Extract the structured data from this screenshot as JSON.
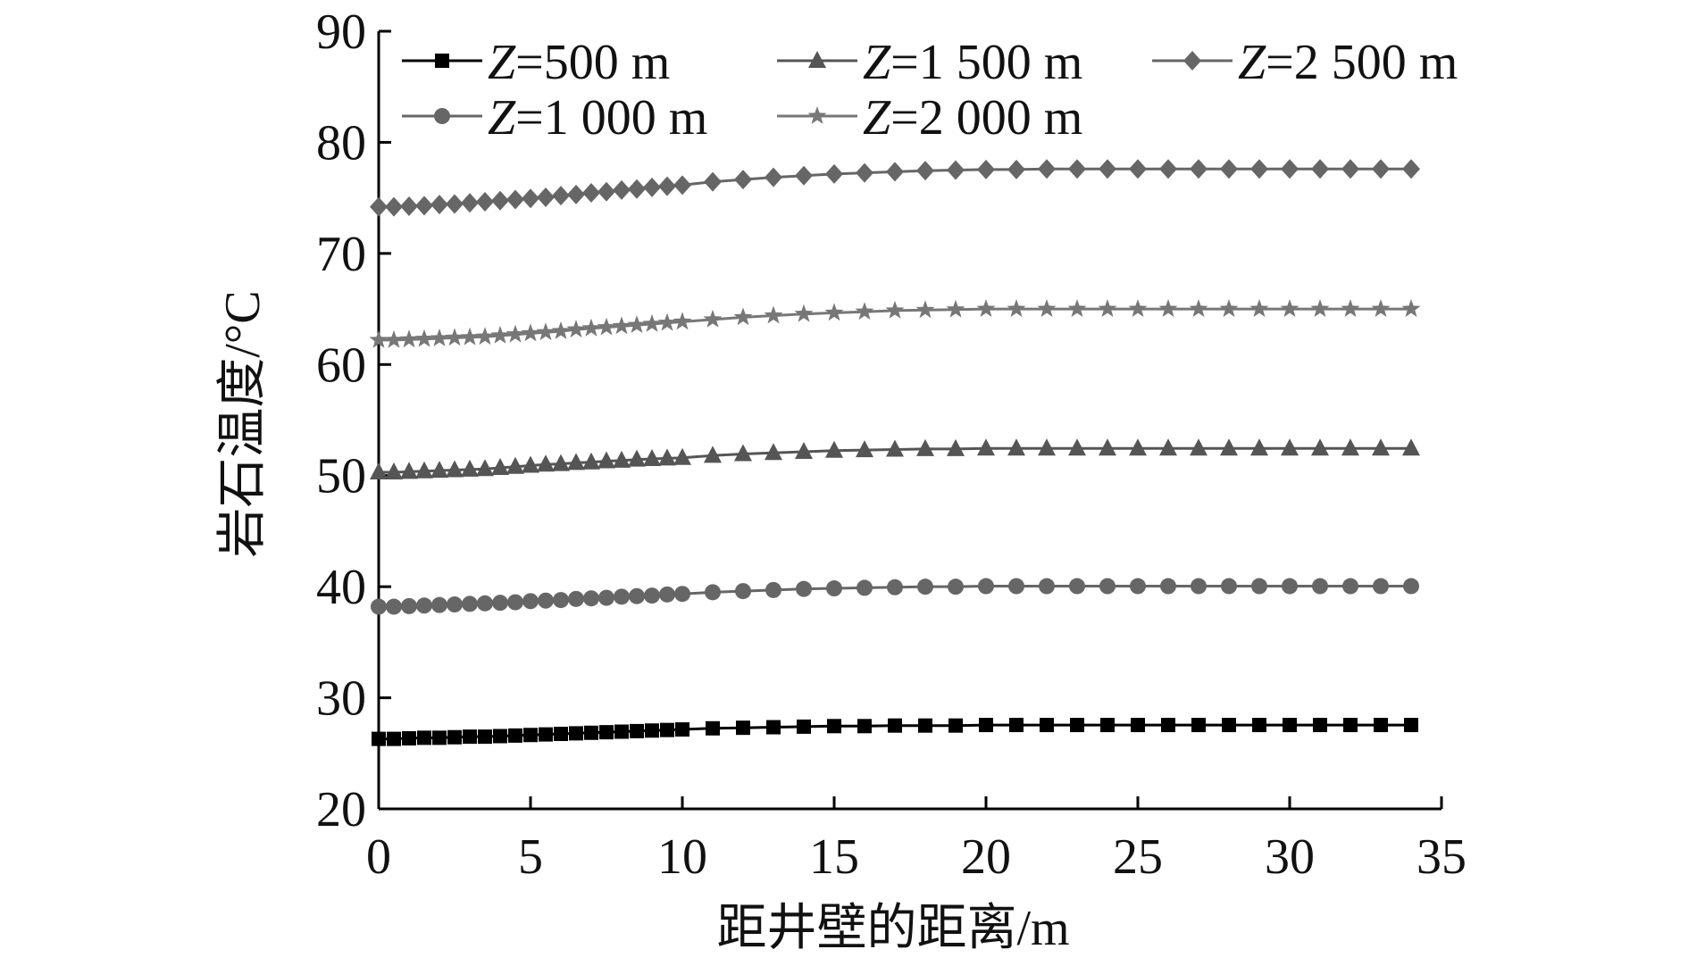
{
  "chart_data": {
    "type": "line",
    "title": "",
    "xlabel": "距井壁的距离/m",
    "ylabel": "岩石温度/°C",
    "xlim": [
      0,
      35
    ],
    "ylim": [
      20,
      90
    ],
    "xticks": [
      0,
      5,
      10,
      15,
      20,
      25,
      30,
      35
    ],
    "yticks": [
      20,
      30,
      40,
      50,
      60,
      70,
      80,
      90
    ],
    "grid": false,
    "legend_position": "top, inside plot",
    "legend_rows": [
      [
        "Z=500 m",
        "Z=1 500 m",
        "Z=2 500 m"
      ],
      [
        "Z=1 000 m",
        "Z=2 000 m"
      ]
    ],
    "series": [
      {
        "name": "Z=500 m",
        "prefix": "Z",
        "suffix": "=500 m",
        "marker": "square",
        "color": "#000000",
        "x": [
          0,
          0.5,
          1,
          1.5,
          2,
          2.5,
          3,
          3.5,
          4,
          4.5,
          5,
          5.5,
          6,
          6.5,
          7,
          7.5,
          8,
          8.5,
          9,
          9.5,
          10,
          11,
          12,
          13,
          14,
          15,
          16,
          17,
          18,
          19,
          20,
          21,
          22,
          23,
          24,
          25,
          26,
          27,
          28,
          29,
          30,
          31,
          32,
          33,
          34
        ],
        "y": [
          26.3,
          26.3,
          26.35,
          26.4,
          26.4,
          26.45,
          26.5,
          26.5,
          26.55,
          26.6,
          26.65,
          26.7,
          26.75,
          26.8,
          26.85,
          26.9,
          26.95,
          27.0,
          27.05,
          27.1,
          27.15,
          27.25,
          27.3,
          27.35,
          27.4,
          27.45,
          27.45,
          27.5,
          27.5,
          27.5,
          27.55,
          27.55,
          27.55,
          27.55,
          27.55,
          27.55,
          27.55,
          27.55,
          27.55,
          27.55,
          27.55,
          27.55,
          27.55,
          27.55,
          27.55
        ]
      },
      {
        "name": "Z=1 000 m",
        "prefix": "Z",
        "suffix": "=1 000 m",
        "marker": "circle",
        "color": "#666666",
        "x": [
          0,
          0.5,
          1,
          1.5,
          2,
          2.5,
          3,
          3.5,
          4,
          4.5,
          5,
          5.5,
          6,
          6.5,
          7,
          7.5,
          8,
          8.5,
          9,
          9.5,
          10,
          11,
          12,
          13,
          14,
          15,
          16,
          17,
          18,
          19,
          20,
          21,
          22,
          23,
          24,
          25,
          26,
          27,
          28,
          29,
          30,
          31,
          32,
          33,
          34
        ],
        "y": [
          38.2,
          38.2,
          38.25,
          38.3,
          38.35,
          38.4,
          38.45,
          38.5,
          38.55,
          38.6,
          38.7,
          38.75,
          38.8,
          38.9,
          38.95,
          39.0,
          39.1,
          39.15,
          39.2,
          39.3,
          39.35,
          39.5,
          39.6,
          39.7,
          39.8,
          39.85,
          39.9,
          39.95,
          40.0,
          40.0,
          40.05,
          40.05,
          40.05,
          40.05,
          40.05,
          40.05,
          40.05,
          40.05,
          40.05,
          40.05,
          40.05,
          40.05,
          40.05,
          40.05,
          40.05
        ]
      },
      {
        "name": "Z=1 500 m",
        "prefix": "Z",
        "suffix": "=1 500 m",
        "marker": "triangle",
        "color": "#555555",
        "x": [
          0,
          0.5,
          1,
          1.5,
          2,
          2.5,
          3,
          3.5,
          4,
          4.5,
          5,
          5.5,
          6,
          6.5,
          7,
          7.5,
          8,
          8.5,
          9,
          9.5,
          10,
          11,
          12,
          13,
          14,
          15,
          16,
          17,
          18,
          19,
          20,
          21,
          22,
          23,
          24,
          25,
          26,
          27,
          28,
          29,
          30,
          31,
          32,
          33,
          34
        ],
        "y": [
          50.3,
          50.3,
          50.35,
          50.4,
          50.45,
          50.5,
          50.55,
          50.6,
          50.7,
          50.8,
          50.9,
          51.0,
          51.05,
          51.15,
          51.2,
          51.3,
          51.35,
          51.45,
          51.5,
          51.55,
          51.6,
          51.8,
          51.95,
          52.05,
          52.15,
          52.25,
          52.3,
          52.35,
          52.4,
          52.4,
          52.45,
          52.45,
          52.45,
          52.45,
          52.45,
          52.45,
          52.45,
          52.45,
          52.45,
          52.45,
          52.45,
          52.45,
          52.45,
          52.45,
          52.45
        ]
      },
      {
        "name": "Z=2 000 m",
        "prefix": "Z",
        "suffix": "=2 000 m",
        "marker": "star",
        "color": "#777777",
        "x": [
          0,
          0.5,
          1,
          1.5,
          2,
          2.5,
          3,
          3.5,
          4,
          4.5,
          5,
          5.5,
          6,
          6.5,
          7,
          7.5,
          8,
          8.5,
          9,
          9.5,
          10,
          11,
          12,
          13,
          14,
          15,
          16,
          17,
          18,
          19,
          20,
          21,
          22,
          23,
          24,
          25,
          26,
          27,
          28,
          29,
          30,
          31,
          32,
          33,
          34
        ],
        "y": [
          62.2,
          62.2,
          62.25,
          62.3,
          62.35,
          62.4,
          62.45,
          62.5,
          62.6,
          62.7,
          62.8,
          62.9,
          63.0,
          63.15,
          63.25,
          63.35,
          63.45,
          63.55,
          63.65,
          63.75,
          63.85,
          64.05,
          64.25,
          64.4,
          64.55,
          64.65,
          64.75,
          64.85,
          64.9,
          64.95,
          65.0,
          65.0,
          65.0,
          65.0,
          65.0,
          65.0,
          65.0,
          65.0,
          65.0,
          65.0,
          65.0,
          65.0,
          65.0,
          65.0,
          65.0
        ]
      },
      {
        "name": "Z=2 500 m",
        "prefix": "Z",
        "suffix": "=2 500 m",
        "marker": "diamond",
        "color": "#666666",
        "x": [
          0,
          0.5,
          1,
          1.5,
          2,
          2.5,
          3,
          3.5,
          4,
          4.5,
          5,
          5.5,
          6,
          6.5,
          7,
          7.5,
          8,
          8.5,
          9,
          9.5,
          10,
          11,
          12,
          13,
          14,
          15,
          16,
          17,
          18,
          19,
          20,
          21,
          22,
          23,
          24,
          25,
          26,
          27,
          28,
          29,
          30,
          31,
          32,
          33,
          34
        ],
        "y": [
          74.2,
          74.2,
          74.25,
          74.3,
          74.4,
          74.45,
          74.55,
          74.65,
          74.75,
          74.85,
          74.95,
          75.05,
          75.2,
          75.3,
          75.45,
          75.55,
          75.7,
          75.8,
          75.95,
          76.05,
          76.15,
          76.45,
          76.65,
          76.85,
          77.0,
          77.15,
          77.25,
          77.35,
          77.45,
          77.5,
          77.55,
          77.55,
          77.6,
          77.6,
          77.6,
          77.6,
          77.6,
          77.6,
          77.6,
          77.6,
          77.6,
          77.6,
          77.6,
          77.6,
          77.6
        ]
      }
    ]
  }
}
